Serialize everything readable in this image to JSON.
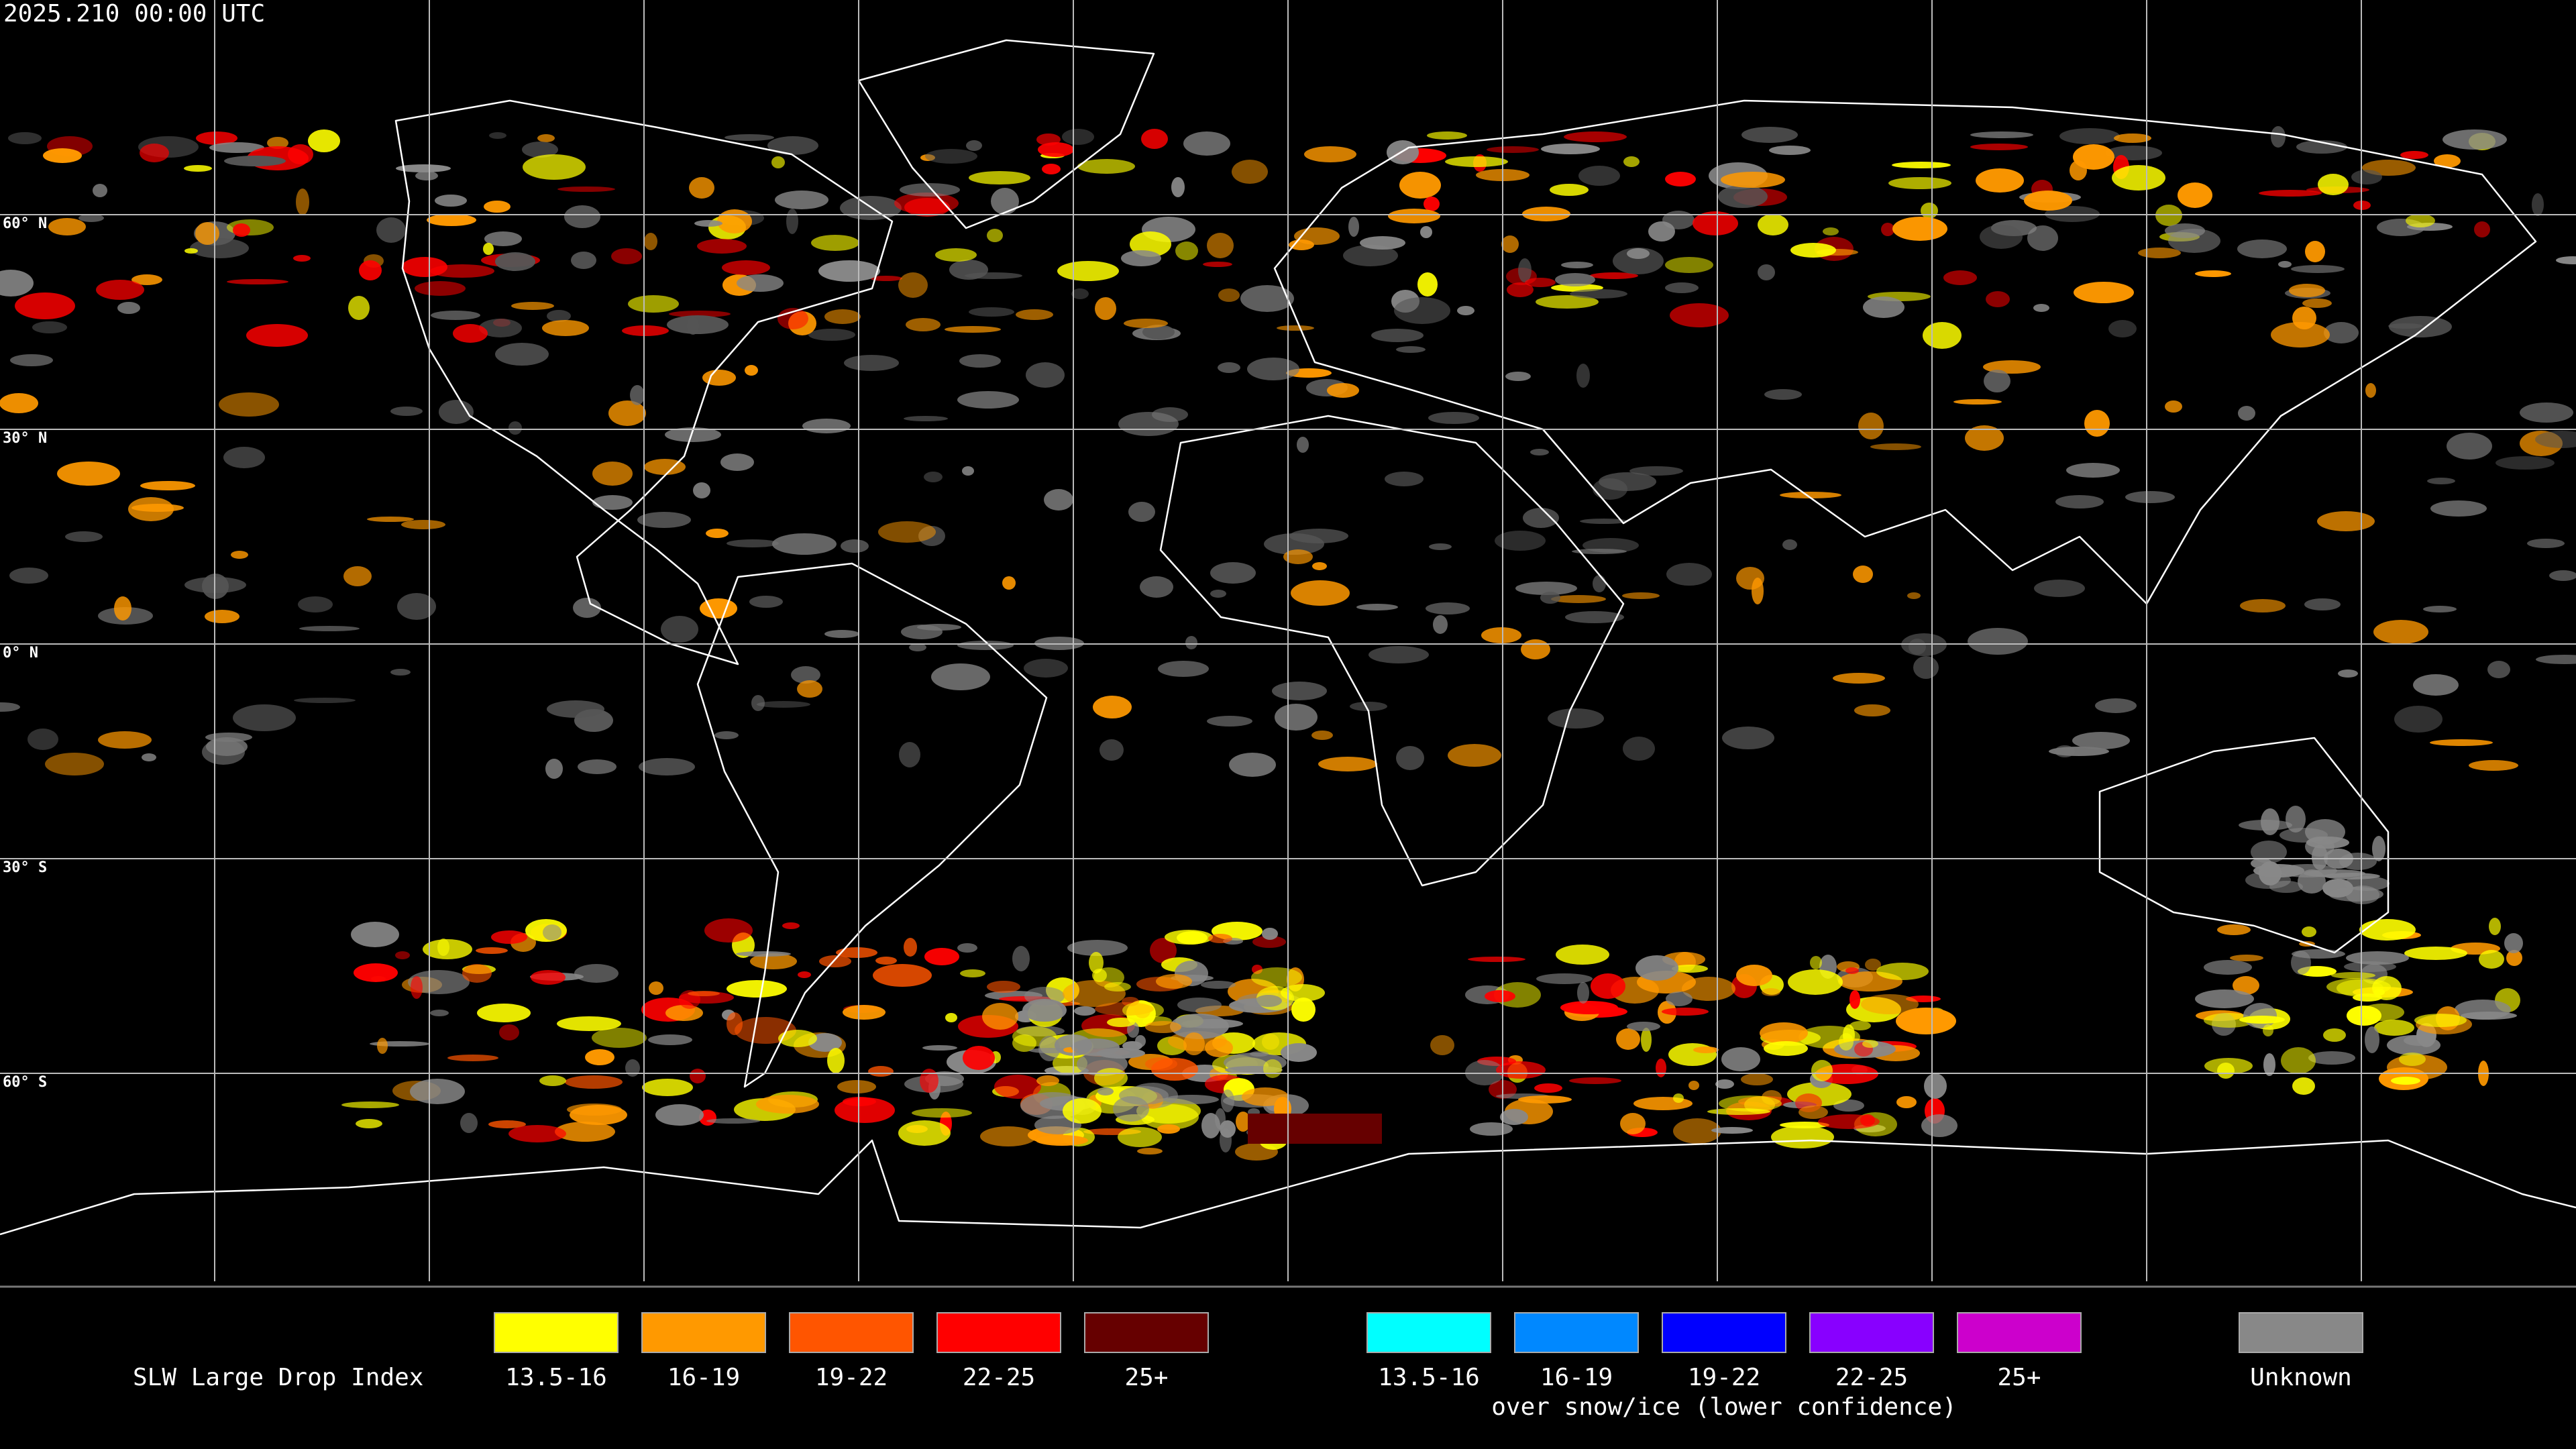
{
  "header": {
    "timestamp": "2025.210 00:00 UTC"
  },
  "grid": {
    "lat_labels": [
      "60° N",
      "30° N",
      "0° N",
      "30° S",
      "60° S"
    ]
  },
  "legend": {
    "title": "SLW Large Drop Index",
    "groups": [
      {
        "items": [
          {
            "label": "13.5-16",
            "color": "#ffff00"
          },
          {
            "label": "16-19",
            "color": "#ff9900"
          },
          {
            "label": "19-22",
            "color": "#ff5500"
          },
          {
            "label": "22-25",
            "color": "#ff0000"
          },
          {
            "label": "25+",
            "color": "#660000"
          }
        ]
      },
      {
        "caption": "over snow/ice (lower confidence)",
        "items": [
          {
            "label": "13.5-16",
            "color": "#00ffff"
          },
          {
            "label": "16-19",
            "color": "#0088ff"
          },
          {
            "label": "19-22",
            "color": "#0000ff"
          },
          {
            "label": "22-25",
            "color": "#8800ff"
          },
          {
            "label": "25+",
            "color": "#cc00cc"
          }
        ]
      },
      {
        "items": [
          {
            "label": "Unknown",
            "color": "#888888"
          }
        ]
      }
    ]
  }
}
